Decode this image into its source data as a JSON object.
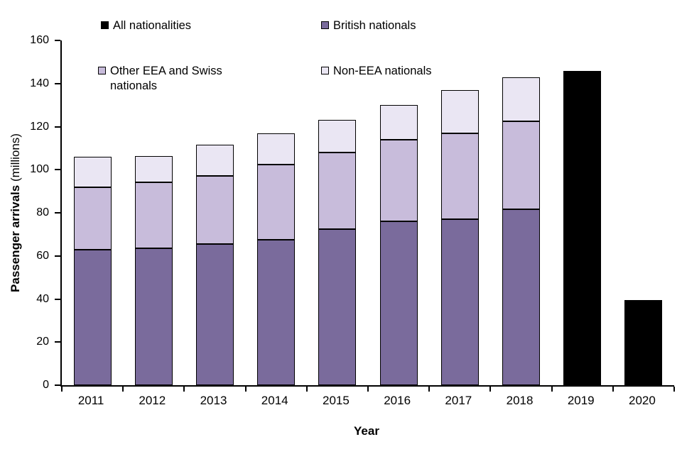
{
  "chart_data": {
    "type": "bar",
    "subtype": "stacked",
    "title": "",
    "xlabel": "Year",
    "ylabel_bold": "Passenger arrivals",
    "ylabel_normal": " (millions)",
    "ylim": [
      0,
      160
    ],
    "yticks": [
      0,
      20,
      40,
      60,
      80,
      100,
      120,
      140,
      160
    ],
    "grid": false,
    "legend_position": "top",
    "categories": [
      "2011",
      "2012",
      "2013",
      "2014",
      "2015",
      "2016",
      "2017",
      "2018",
      "2019",
      "2020"
    ],
    "series": [
      {
        "name": "British nationals",
        "color": "#7a6b9c",
        "values": [
          63,
          63.5,
          65.5,
          67.5,
          72.5,
          76,
          77,
          81.5,
          null,
          null
        ]
      },
      {
        "name": "Other EEA and Swiss nationals",
        "color": "#c8bcdb",
        "values": [
          29,
          30.5,
          31.5,
          35,
          35.5,
          38,
          40,
          41,
          null,
          null
        ]
      },
      {
        "name": "Non-EEA nationals",
        "color": "#eae6f3",
        "values": [
          14,
          12.5,
          14.5,
          14.5,
          15,
          16,
          20,
          20.5,
          null,
          null
        ]
      },
      {
        "name": "All nationalities",
        "color": "#000000",
        "values": [
          null,
          null,
          null,
          null,
          null,
          null,
          null,
          null,
          146,
          39.5
        ]
      }
    ],
    "stack_order": [
      "British nationals",
      "Other EEA and Swiss nationals",
      "Non-EEA nationals"
    ],
    "legend": [
      {
        "label": "All nationalities",
        "color": "#000000"
      },
      {
        "label": "British nationals",
        "color": "#7a6b9c"
      },
      {
        "label": "Other EEA and Swiss nationals",
        "color": "#c8bcdb"
      },
      {
        "label": "Non-EEA nationals",
        "color": "#eae6f3"
      }
    ]
  }
}
